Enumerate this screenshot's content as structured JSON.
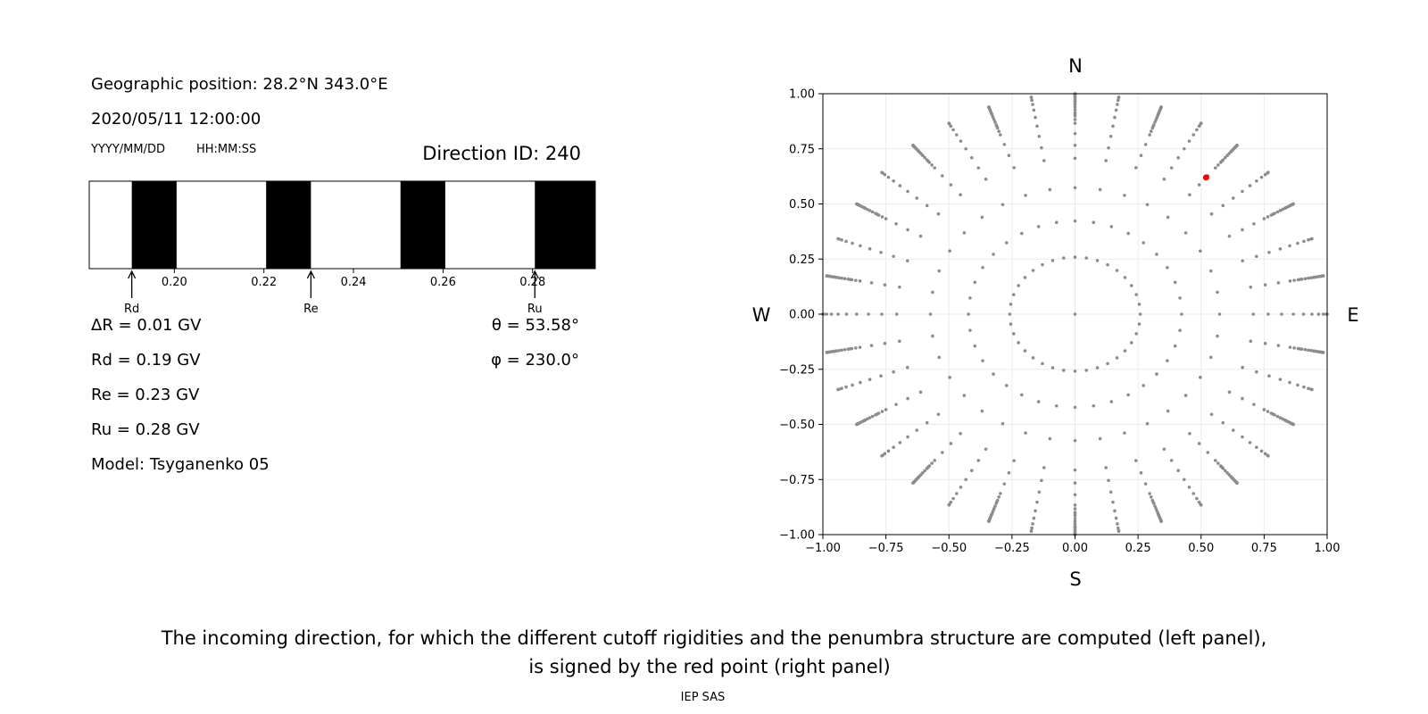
{
  "left_panel": {
    "geo_position": "Geographic position: 28.2°N 343.0°E",
    "datetime": "2020/05/11 12:00:00",
    "date_format": "YYYY/MM/DD",
    "time_format": "HH:MM:SS",
    "direction_id": "Direction ID: 240",
    "delta_r": "ΔR = 0.01 GV",
    "rd": "Rd = 0.19 GV",
    "re": "Re = 0.23 GV",
    "ru": "Ru = 0.28 GV",
    "model": "Model: Tsyganenko 05",
    "theta": "θ = 53.58°",
    "phi": "φ = 230.0°"
  },
  "footer": {
    "caption_line1": "The incoming direction, for which the different cutoff rigidities and the penumbra structure are computed (left panel),",
    "caption_line2": "is signed by the red point (right panel)",
    "credit": "IEP SAS"
  },
  "chart_data": [
    {
      "type": "penumbra",
      "xlim": [
        0.181,
        0.294
      ],
      "ticks": [
        "0.20",
        "0.22",
        "0.24",
        "0.26",
        "0.28"
      ],
      "tick_values": [
        0.2,
        0.22,
        0.24,
        0.26,
        0.28
      ],
      "forbidden_bands": [
        [
          0.1905,
          0.2005
        ],
        [
          0.2205,
          0.2305
        ],
        [
          0.2505,
          0.2605
        ],
        [
          0.2805,
          0.294
        ]
      ],
      "markers": [
        {
          "label": "Rd",
          "value": 0.1905
        },
        {
          "label": "Re",
          "value": 0.2305
        },
        {
          "label": "Ru",
          "value": 0.2805
        }
      ],
      "colors": {
        "forbidden": "#000000",
        "allowed": "#ffffff"
      }
    },
    {
      "type": "scatter",
      "xlim": [
        -1.0,
        1.0
      ],
      "ylim": [
        -1.0,
        1.0
      ],
      "ticks": [
        "−1.00",
        "−0.75",
        "−0.50",
        "−0.25",
        "0.00",
        "0.25",
        "0.50",
        "0.75",
        "1.00"
      ],
      "tick_values": [
        -1.0,
        -0.75,
        -0.5,
        -0.25,
        0.0,
        0.25,
        0.5,
        0.75,
        1.0
      ],
      "grid": true,
      "compass": {
        "north": "N",
        "south": "S",
        "east": "E",
        "west": "W"
      },
      "grid_series": {
        "zenith_angles_deg": [
          0,
          15,
          25,
          35,
          45,
          50,
          55,
          60,
          65,
          70,
          75,
          80,
          85,
          90
        ],
        "azimuth_step_deg": 10,
        "rim_zenith_step_deg": 2,
        "rim_from_zenith_deg": 60,
        "color": "#8c8c8c"
      },
      "selected_point": {
        "x": 0.52,
        "y": 0.62,
        "color": "#ff0000"
      }
    }
  ]
}
